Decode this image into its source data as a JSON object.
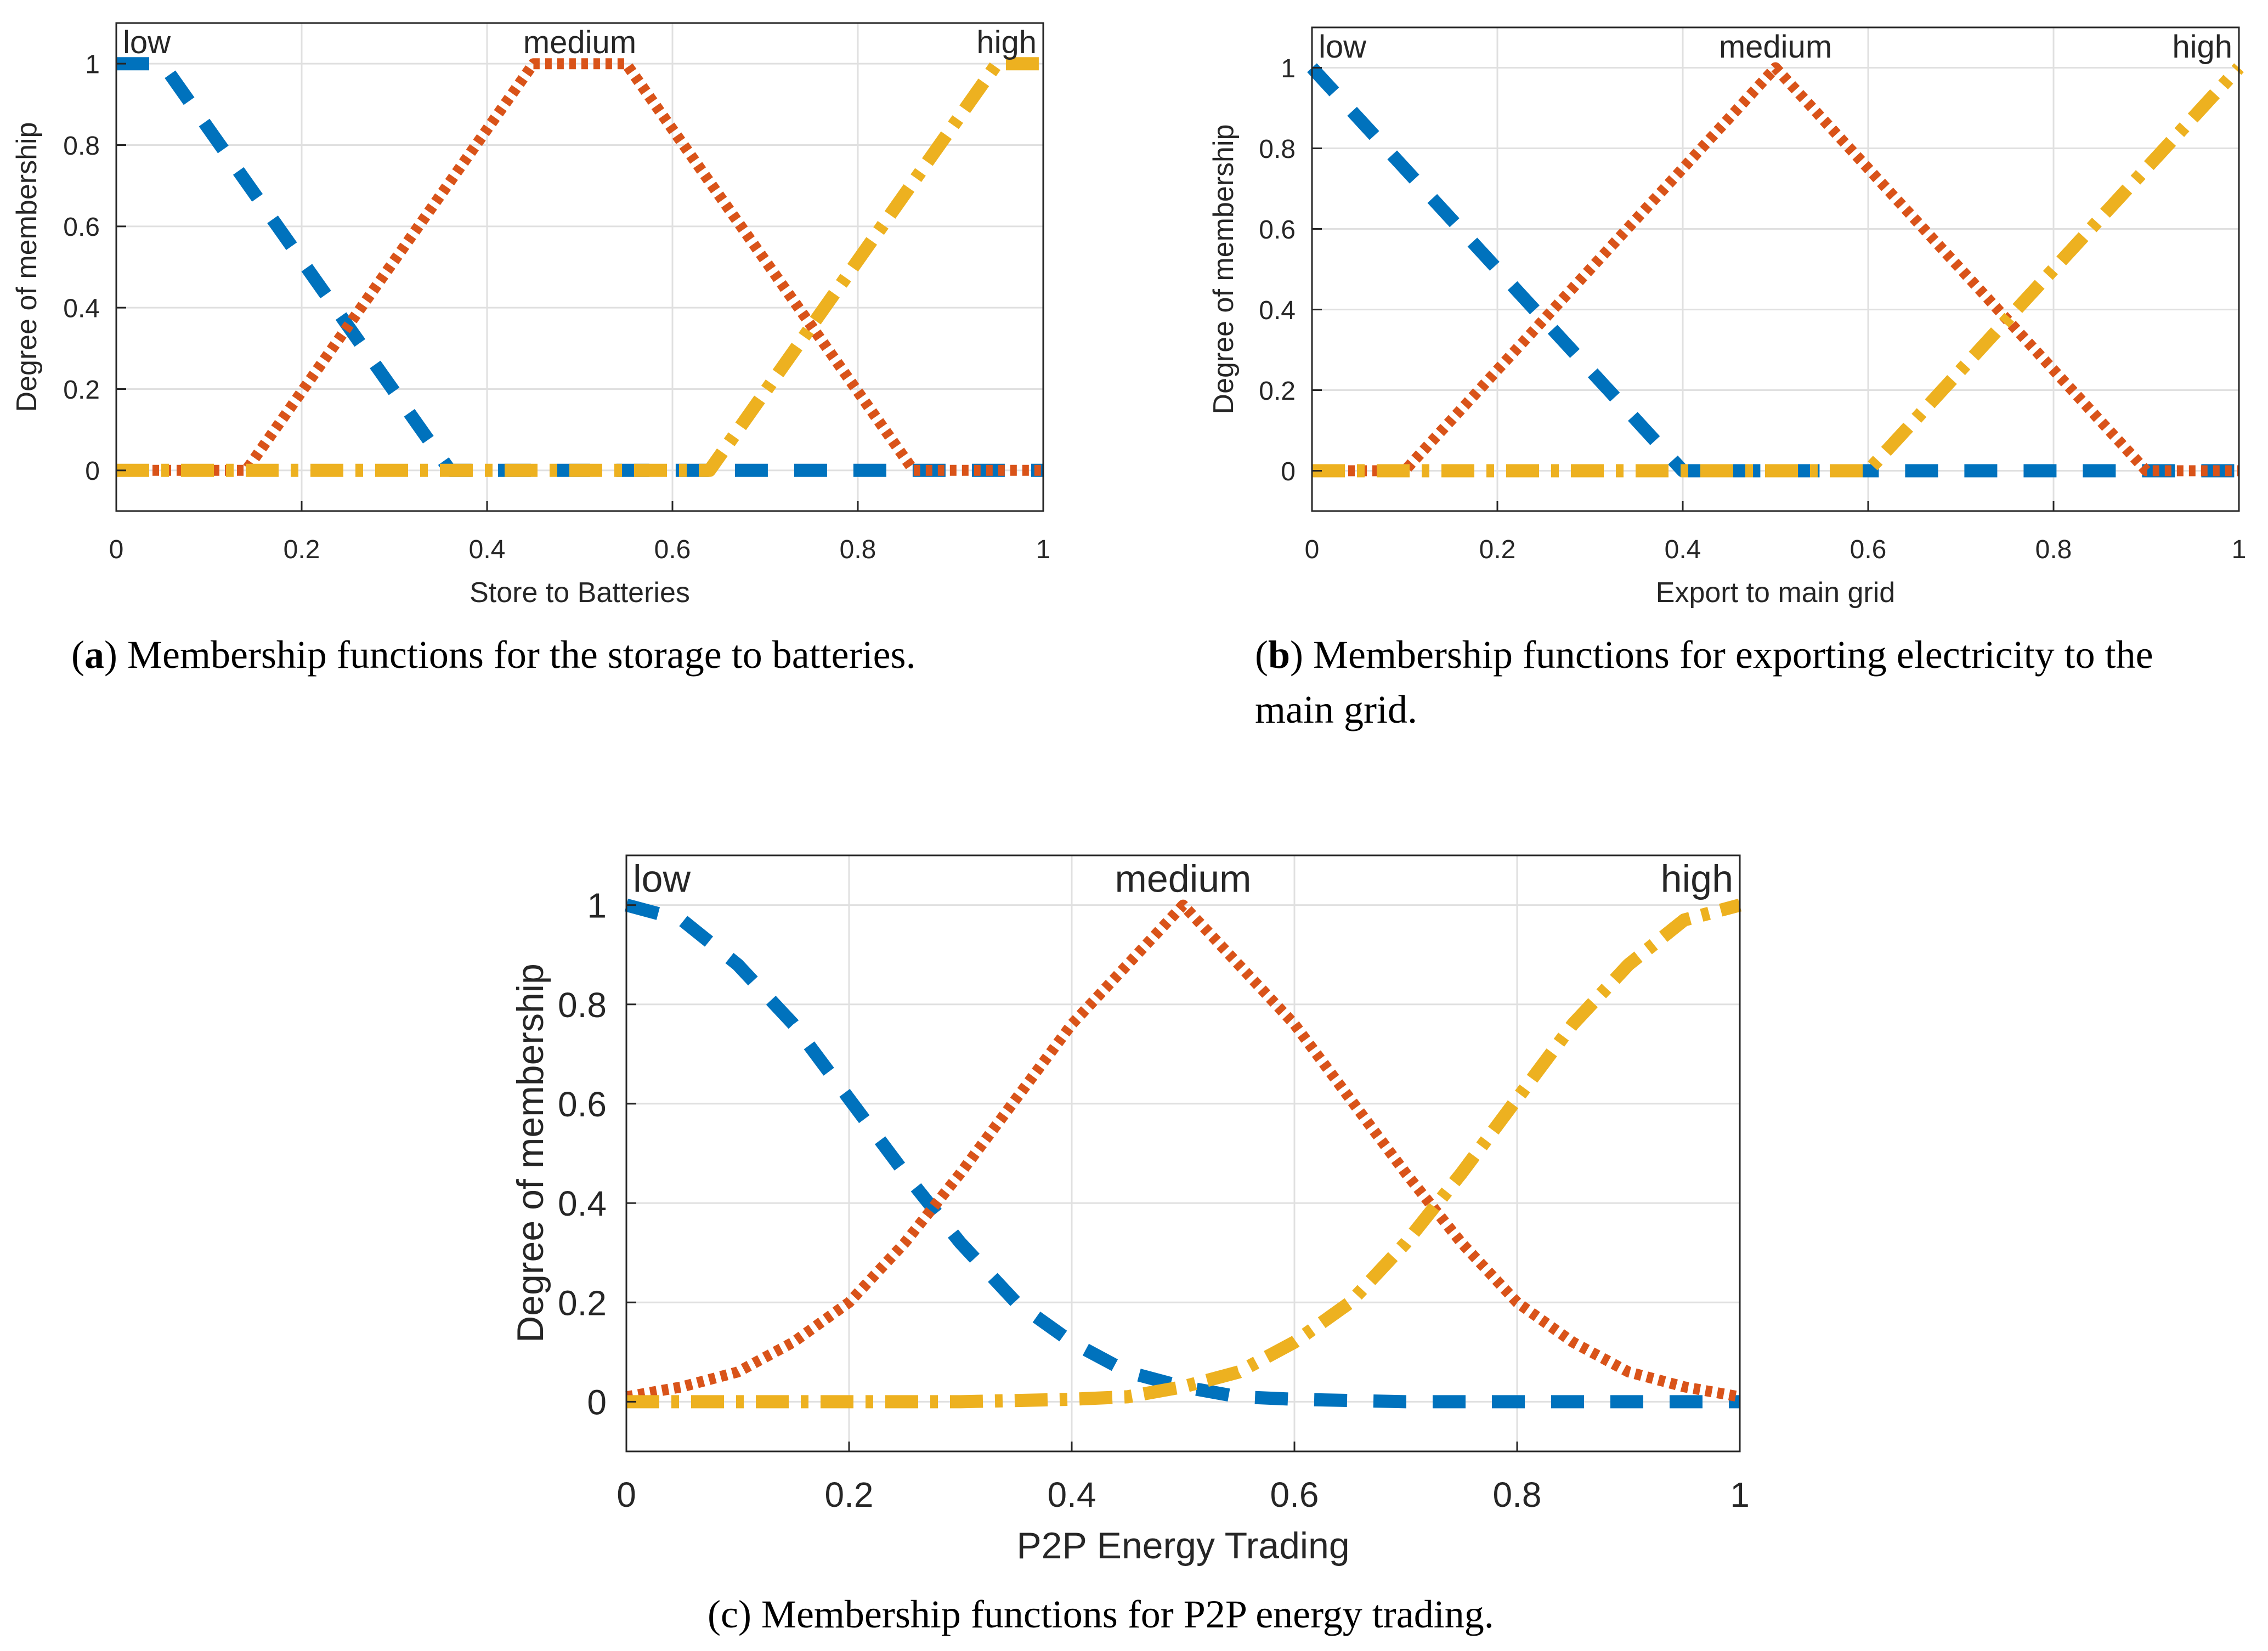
{
  "colors": {
    "low": "#0072BD",
    "medium": "#D95319",
    "high": "#EDB120",
    "grid": "#e0e0e0",
    "axis": "#262626"
  },
  "chart_data": [
    {
      "type": "line",
      "panel": "a",
      "xlabel": "Store to Batteries",
      "ylabel": "Degree of membership",
      "xlim": [
        0,
        1
      ],
      "ylim": [
        -0.1,
        1.1
      ],
      "xticks": [
        0,
        0.2,
        0.4,
        0.6,
        0.8,
        1
      ],
      "xtick_labels": [
        "0",
        "0.2",
        "0.4",
        "0.6",
        "0.8",
        "1"
      ],
      "yticks": [
        0,
        0.2,
        0.4,
        0.6,
        0.8,
        1
      ],
      "ytick_labels": [
        "0",
        "0.2",
        "0.4",
        "0.6",
        "0.8",
        "1"
      ],
      "grid": true,
      "series": [
        {
          "name": "low",
          "color": "#0072BD",
          "style": "dashed",
          "x": [
            0,
            0.05,
            0.36,
            1
          ],
          "y": [
            1,
            1,
            0,
            0
          ]
        },
        {
          "name": "medium",
          "color": "#D95319",
          "style": "dotted",
          "x": [
            0,
            0.14,
            0.45,
            0.55,
            0.86,
            1
          ],
          "y": [
            0,
            0,
            1,
            1,
            0,
            0
          ]
        },
        {
          "name": "high",
          "color": "#EDB120",
          "style": "dashdot",
          "x": [
            0,
            0.64,
            0.95,
            1
          ],
          "y": [
            0,
            0,
            1,
            1
          ]
        }
      ],
      "caption": {
        "label": "a",
        "text": ") Membership functions for the storage to batteries."
      }
    },
    {
      "type": "line",
      "panel": "b",
      "xlabel": "Export to main grid",
      "ylabel": "Degree of membership",
      "xlim": [
        0,
        1
      ],
      "ylim": [
        -0.1,
        1.1
      ],
      "xticks": [
        0,
        0.2,
        0.4,
        0.6,
        0.8,
        1
      ],
      "xtick_labels": [
        "0",
        "0.2",
        "0.4",
        "0.6",
        "0.8",
        "1"
      ],
      "yticks": [
        0,
        0.2,
        0.4,
        0.6,
        0.8,
        1
      ],
      "ytick_labels": [
        "0",
        "0.2",
        "0.4",
        "0.6",
        "0.8",
        "1"
      ],
      "grid": true,
      "series": [
        {
          "name": "low",
          "color": "#0072BD",
          "style": "dashed",
          "x": [
            0,
            0.4,
            1
          ],
          "y": [
            1,
            0,
            0
          ]
        },
        {
          "name": "medium",
          "color": "#D95319",
          "style": "dotted",
          "x": [
            0,
            0.1,
            0.5,
            0.9,
            1
          ],
          "y": [
            0,
            0,
            1,
            0,
            0
          ]
        },
        {
          "name": "high",
          "color": "#EDB120",
          "style": "dashdot",
          "x": [
            0,
            0.6,
            1
          ],
          "y": [
            0,
            0,
            1
          ]
        }
      ],
      "caption": {
        "label": "b",
        "line1": ") Membership functions for exporting electricity to the",
        "line2": "main grid."
      }
    },
    {
      "type": "line",
      "panel": "c",
      "xlabel": "P2P Energy Trading",
      "ylabel": "Degree of membership",
      "xlim": [
        0,
        1
      ],
      "ylim": [
        -0.1,
        1.1
      ],
      "xticks": [
        0,
        0.2,
        0.4,
        0.6,
        0.8,
        1
      ],
      "xtick_labels": [
        "0",
        "0.2",
        "0.4",
        "0.6",
        "0.8",
        "1"
      ],
      "yticks": [
        0,
        0.2,
        0.4,
        0.6,
        0.8,
        1
      ],
      "ytick_labels": [
        "0",
        "0.2",
        "0.4",
        "0.6",
        "0.8",
        "1"
      ],
      "grid": true,
      "series": [
        {
          "name": "low",
          "color": "#0072BD",
          "style": "dashed",
          "x": [
            0,
            0.05,
            0.1,
            0.15,
            0.2,
            0.25,
            0.3,
            0.35,
            0.4,
            0.45,
            0.5,
            0.55,
            0.6,
            0.7,
            0.8,
            0.9,
            1
          ],
          "y": [
            1,
            0.97,
            0.88,
            0.76,
            0.61,
            0.46,
            0.32,
            0.2,
            0.12,
            0.06,
            0.03,
            0.01,
            0.005,
            0,
            0,
            0,
            0
          ]
        },
        {
          "name": "medium",
          "color": "#D95319",
          "style": "dotted",
          "x": [
            0,
            0.05,
            0.1,
            0.15,
            0.2,
            0.25,
            0.3,
            0.35,
            0.4,
            0.45,
            0.5,
            0.55,
            0.6,
            0.65,
            0.7,
            0.75,
            0.8,
            0.85,
            0.9,
            0.95,
            1
          ],
          "y": [
            0.01,
            0.03,
            0.06,
            0.12,
            0.2,
            0.32,
            0.46,
            0.61,
            0.76,
            0.88,
            1,
            0.88,
            0.76,
            0.61,
            0.46,
            0.32,
            0.2,
            0.12,
            0.06,
            0.03,
            0.01
          ]
        },
        {
          "name": "high",
          "color": "#EDB120",
          "style": "dashdot",
          "x": [
            0,
            0.1,
            0.2,
            0.3,
            0.4,
            0.45,
            0.5,
            0.55,
            0.6,
            0.65,
            0.7,
            0.75,
            0.8,
            0.85,
            0.9,
            0.95,
            1
          ],
          "y": [
            0,
            0,
            0,
            0,
            0.005,
            0.01,
            0.03,
            0.06,
            0.12,
            0.2,
            0.32,
            0.46,
            0.61,
            0.76,
            0.88,
            0.97,
            1
          ]
        }
      ],
      "caption": {
        "label": "c",
        "text": ") Membership functions for P2P energy trading."
      }
    }
  ]
}
